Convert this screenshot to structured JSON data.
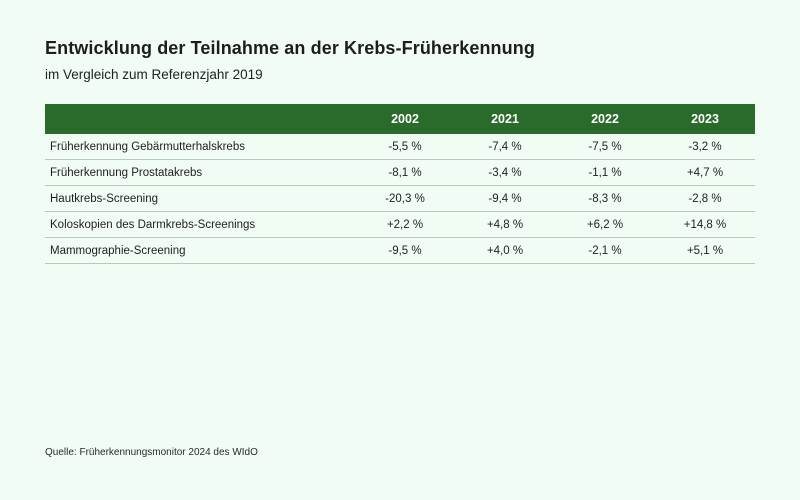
{
  "title": "Entwicklung der Teilnahme an der Krebs-Früherkennung",
  "subtitle": "im Vergleich zum Referenzjahr 2019",
  "source": "Quelle: Früherkennungsmonitor 2024 des WIdO",
  "colors": {
    "background": "#f1fcf5",
    "header": "#2a6a2a",
    "header_text": "#ffffff",
    "row_divider": "#b9c8bd"
  },
  "chart_data": {
    "type": "table",
    "title": "Entwicklung der Teilnahme an der Krebs-Früherkennung",
    "subtitle": "im Vergleich zum Referenzjahr 2019",
    "columns": [
      "2002",
      "2021",
      "2022",
      "2023"
    ],
    "rows": [
      {
        "label": "Früherkennung Gebärmutterhalskrebs",
        "values": [
          "-5,5 %",
          "-7,4 %",
          "-7,5 %",
          "-3,2 %"
        ]
      },
      {
        "label": "Früherkennung Prostatakrebs",
        "values": [
          "-8,1 %",
          "-3,4 %",
          "-1,1 %",
          "+4,7 %"
        ]
      },
      {
        "label": "Hautkrebs-Screening",
        "values": [
          "-20,3 %",
          "-9,4 %",
          "-8,3 %",
          "-2,8 %"
        ]
      },
      {
        "label": "Koloskopien des Darmkrebs-Screenings",
        "values": [
          "+2,2 %",
          "+4,8 %",
          "+6,2 %",
          "+14,8 %"
        ]
      },
      {
        "label": "Mammographie-Screening",
        "values": [
          "-9,5 %",
          "+4,0 %",
          "-2,1 %",
          "+5,1 %"
        ]
      }
    ],
    "numeric_values": [
      [
        -5.5,
        -7.4,
        -7.5,
        -3.2
      ],
      [
        -8.1,
        -3.4,
        -1.1,
        4.7
      ],
      [
        -20.3,
        -9.4,
        -8.3,
        -2.8
      ],
      [
        2.2,
        4.8,
        6.2,
        14.8
      ],
      [
        -9.5,
        4.0,
        -2.1,
        5.1
      ]
    ],
    "unit": "%"
  }
}
